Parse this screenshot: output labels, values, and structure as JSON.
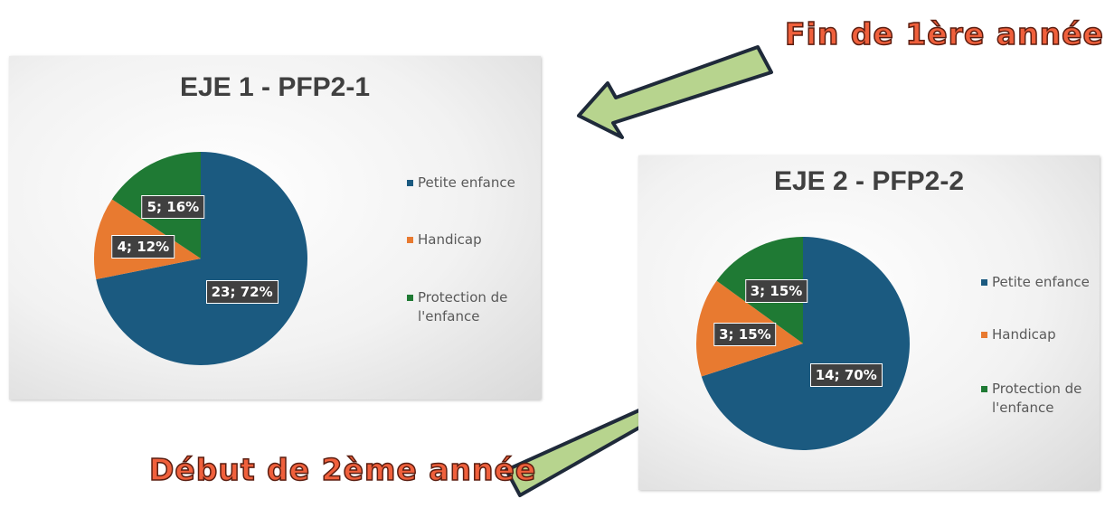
{
  "chart_data": [
    {
      "type": "pie",
      "title": "EJE 1 - PFP2-1",
      "annotation": "Fin de 1ère année",
      "categories": [
        "Petite enfance",
        "Handicap",
        "Protection de l'enfance"
      ],
      "values": [
        23,
        4,
        5
      ],
      "value_labels": [
        "23; 72%",
        "4; 12%",
        "5; 16%"
      ],
      "colors": [
        "#1b5a80",
        "#e87a30",
        "#1f7a34"
      ]
    },
    {
      "type": "pie",
      "title": "EJE 2 - PFP2-2",
      "annotation": "Début de 2ème année",
      "categories": [
        "Petite enfance",
        "Handicap",
        "Protection de l'enfance"
      ],
      "values": [
        14,
        3,
        3
      ],
      "value_labels": [
        "14; 70%",
        "3; 15%",
        "3; 15%"
      ],
      "colors": [
        "#1b5a80",
        "#e87a30",
        "#1f7a34"
      ]
    }
  ]
}
